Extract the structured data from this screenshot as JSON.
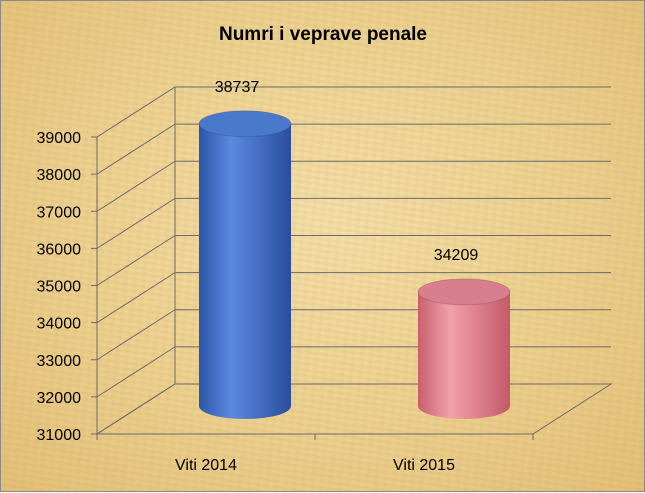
{
  "chart_data": {
    "type": "bar",
    "style": "3d-cylinder",
    "title": "Numri i veprave penale",
    "categories": [
      "Viti 2014",
      "Viti 2015"
    ],
    "values": [
      38737,
      34209
    ],
    "data_labels": [
      "38737",
      "34209"
    ],
    "bar_colors": [
      "#3f6fc4",
      "#e0808e"
    ],
    "ylim": [
      31000,
      39000
    ],
    "yticks": [
      "31000",
      "32000",
      "33000",
      "34000",
      "35000",
      "36000",
      "37000",
      "38000",
      "39000"
    ],
    "grid": true,
    "legend": "none",
    "background": "parchment"
  }
}
